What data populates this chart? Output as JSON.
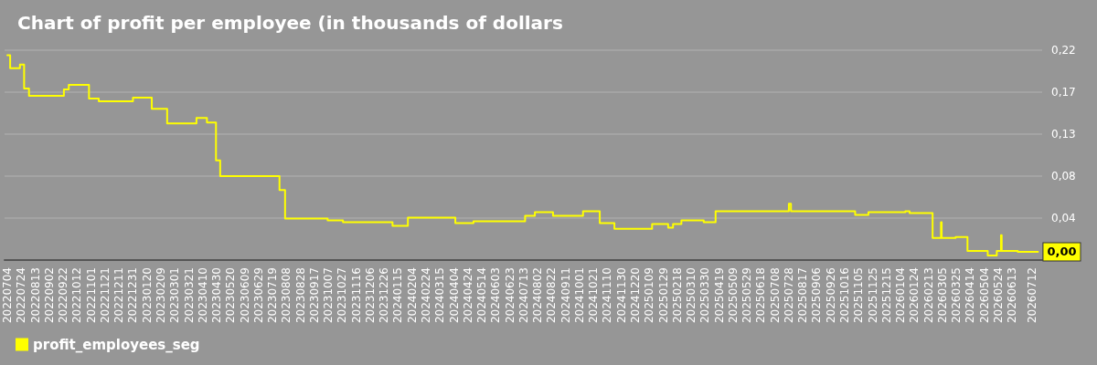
{
  "chart_data": {
    "type": "step",
    "title": "Chart of profit per employee (in thousands of dollars",
    "x": [
      "2022-07-04",
      "2022-07-08",
      "2022-07-22",
      "2022-07-28",
      "2022-08-04",
      "2022-09-23",
      "2022-09-30",
      "2022-10-29",
      "2022-11-12",
      "2022-12-31",
      "2023-01-27",
      "2023-02-18",
      "2023-04-01",
      "2023-04-16",
      "2023-04-29",
      "2023-05-05",
      "2023-07-29",
      "2023-08-06",
      "2023-10-06",
      "2023-10-28",
      "2024-01-07",
      "2024-01-29",
      "2024-04-06",
      "2024-05-02",
      "2024-07-15",
      "2024-07-29",
      "2024-08-24",
      "2024-10-06",
      "2024-10-30",
      "2024-11-20",
      "2025-01-13",
      "2025-02-05",
      "2025-02-12",
      "2025-02-24",
      "2025-03-28",
      "2025-04-14",
      "2025-07-28",
      "2025-07-31",
      "2025-10-31",
      "2025-11-19",
      "2026-01-11",
      "2026-01-17",
      "2026-02-19",
      "2026-03-03",
      "2026-03-04",
      "2026-03-24",
      "2026-04-10",
      "2026-05-09",
      "2026-05-22",
      "2026-05-28",
      "2026-05-29",
      "2026-06-21",
      "2026-07-20"
    ],
    "series": [
      {
        "name": "profit_employees_seg",
        "color": "#ffff00",
        "values": [
          0.213,
          0.199,
          0.203,
          0.177,
          0.169,
          0.176,
          0.181,
          0.166,
          0.163,
          0.167,
          0.155,
          0.139,
          0.145,
          0.14,
          0.099,
          0.082,
          0.067,
          0.036,
          0.034,
          0.032,
          0.028,
          0.037,
          0.031,
          0.033,
          0.039,
          0.043,
          0.039,
          0.044,
          0.031,
          0.025,
          0.03,
          0.026,
          0.03,
          0.034,
          0.032,
          0.044,
          0.052,
          0.044,
          0.04,
          0.043,
          0.044,
          0.042,
          0.015,
          0.032,
          0.015,
          0.016,
          0.001,
          -0.004,
          0.001,
          0.018,
          0.001,
          0.0,
          0.0
        ],
        "value_labels": [
          null,
          null,
          null,
          null,
          null,
          null,
          null,
          null,
          null,
          null,
          null,
          null,
          null,
          null,
          null,
          null,
          null,
          null,
          null,
          null,
          null,
          null,
          null,
          null,
          null,
          null,
          null,
          null,
          null,
          null,
          null,
          null,
          null,
          null,
          null,
          null,
          null,
          null,
          null,
          null,
          null,
          null,
          null,
          null,
          null,
          null,
          null,
          null,
          null,
          null,
          null,
          null,
          "0,00"
        ]
      }
    ],
    "xlim": [
      "2022-06-30",
      "2026-07-26"
    ],
    "xticks": [
      {
        "value": "2022-07-04",
        "label": "20220704"
      },
      {
        "value": "2022-07-24",
        "label": "20220724"
      },
      {
        "value": "2022-08-13",
        "label": "20220813"
      },
      {
        "value": "2022-09-02",
        "label": "20220902"
      },
      {
        "value": "2022-09-22",
        "label": "20220922"
      },
      {
        "value": "2022-10-12",
        "label": "20221012"
      },
      {
        "value": "2022-11-01",
        "label": "20221101"
      },
      {
        "value": "2022-11-21",
        "label": "20221121"
      },
      {
        "value": "2022-12-11",
        "label": "20221211"
      },
      {
        "value": "2022-12-31",
        "label": "20221231"
      },
      {
        "value": "2023-01-20",
        "label": "20230120"
      },
      {
        "value": "2023-02-09",
        "label": "20230209"
      },
      {
        "value": "2023-03-01",
        "label": "20230301"
      },
      {
        "value": "2023-03-21",
        "label": "20230321"
      },
      {
        "value": "2023-04-10",
        "label": "20230410"
      },
      {
        "value": "2023-04-30",
        "label": "20230430"
      },
      {
        "value": "2023-05-20",
        "label": "20230520"
      },
      {
        "value": "2023-06-09",
        "label": "20230609"
      },
      {
        "value": "2023-06-29",
        "label": "20230629"
      },
      {
        "value": "2023-07-19",
        "label": "20230719"
      },
      {
        "value": "2023-08-08",
        "label": "20230808"
      },
      {
        "value": "2023-08-28",
        "label": "20230828"
      },
      {
        "value": "2023-09-17",
        "label": "20230917"
      },
      {
        "value": "2023-10-07",
        "label": "20231007"
      },
      {
        "value": "2023-10-27",
        "label": "20231027"
      },
      {
        "value": "2023-11-16",
        "label": "20231116"
      },
      {
        "value": "2023-12-06",
        "label": "20231206"
      },
      {
        "value": "2023-12-26",
        "label": "20231226"
      },
      {
        "value": "2024-01-15",
        "label": "20240115"
      },
      {
        "value": "2024-02-04",
        "label": "20240204"
      },
      {
        "value": "2024-02-24",
        "label": "20240224"
      },
      {
        "value": "2024-03-15",
        "label": "20240315"
      },
      {
        "value": "2024-04-04",
        "label": "20240404"
      },
      {
        "value": "2024-04-24",
        "label": "20240424"
      },
      {
        "value": "2024-05-14",
        "label": "20240514"
      },
      {
        "value": "2024-06-03",
        "label": "20240603"
      },
      {
        "value": "2024-06-23",
        "label": "20240623"
      },
      {
        "value": "2024-07-13",
        "label": "20240713"
      },
      {
        "value": "2024-08-02",
        "label": "20240802"
      },
      {
        "value": "2024-08-22",
        "label": "20240822"
      },
      {
        "value": "2024-09-11",
        "label": "20240911"
      },
      {
        "value": "2024-10-01",
        "label": "20241001"
      },
      {
        "value": "2024-10-21",
        "label": "20241021"
      },
      {
        "value": "2024-11-10",
        "label": "20241110"
      },
      {
        "value": "2024-11-30",
        "label": "20241130"
      },
      {
        "value": "2024-12-20",
        "label": "20241220"
      },
      {
        "value": "2025-01-09",
        "label": "20250109"
      },
      {
        "value": "2025-01-29",
        "label": "20250129"
      },
      {
        "value": "2025-02-18",
        "label": "20250218"
      },
      {
        "value": "2025-03-10",
        "label": "20250310"
      },
      {
        "value": "2025-03-30",
        "label": "20250330"
      },
      {
        "value": "2025-04-19",
        "label": "20250419"
      },
      {
        "value": "2025-05-09",
        "label": "20250509"
      },
      {
        "value": "2025-05-29",
        "label": "20250529"
      },
      {
        "value": "2025-06-18",
        "label": "20250618"
      },
      {
        "value": "2025-07-08",
        "label": "20250708"
      },
      {
        "value": "2025-07-28",
        "label": "20250728"
      },
      {
        "value": "2025-08-17",
        "label": "20250817"
      },
      {
        "value": "2025-09-06",
        "label": "20250906"
      },
      {
        "value": "2025-09-26",
        "label": "20250926"
      },
      {
        "value": "2025-10-16",
        "label": "20251016"
      },
      {
        "value": "2025-11-05",
        "label": "20251105"
      },
      {
        "value": "2025-11-25",
        "label": "20251125"
      },
      {
        "value": "2025-12-15",
        "label": "20251215"
      },
      {
        "value": "2026-01-04",
        "label": "20260104"
      },
      {
        "value": "2026-01-24",
        "label": "20260124"
      },
      {
        "value": "2026-02-13",
        "label": "20260213"
      },
      {
        "value": "2026-03-05",
        "label": "20260305"
      },
      {
        "value": "2026-03-25",
        "label": "20260325"
      },
      {
        "value": "2026-04-14",
        "label": "20260414"
      },
      {
        "value": "2026-05-04",
        "label": "20260504"
      },
      {
        "value": "2026-05-24",
        "label": "20260524"
      },
      {
        "value": "2026-06-13",
        "label": "20260613"
      },
      {
        "value": "2026-07-12",
        "label": "20260712"
      }
    ],
    "ylim": [
      -0.009,
      0.2185
    ],
    "yticks": [
      {
        "value": 0.0365,
        "label": "0,04"
      },
      {
        "value": 0.082,
        "label": "0,08"
      },
      {
        "value": 0.1275,
        "label": "0,13"
      },
      {
        "value": 0.173,
        "label": "0,17"
      },
      {
        "value": 0.2185,
        "label": "0,22"
      }
    ],
    "grid": "y",
    "legend": "bottom left",
    "marker": "none",
    "line_style": "solid"
  }
}
